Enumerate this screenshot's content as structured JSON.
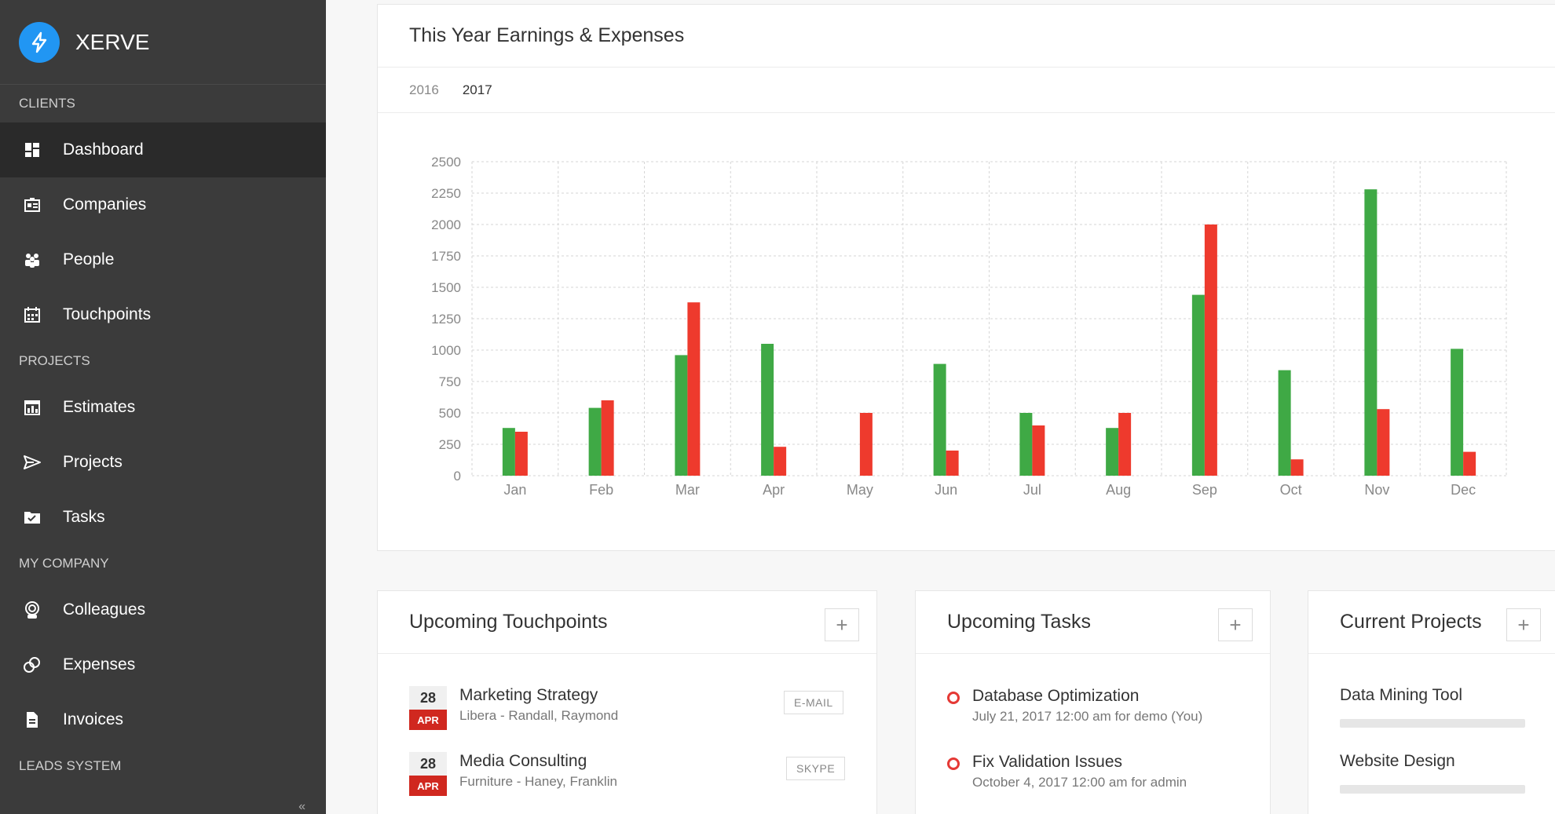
{
  "app": {
    "name": "XERVE"
  },
  "sidebar": {
    "sections": [
      {
        "title": "CLIENTS",
        "items": [
          {
            "label": "Dashboard",
            "icon": "dashboard-icon",
            "active": true
          },
          {
            "label": "Companies",
            "icon": "companies-icon"
          },
          {
            "label": "People",
            "icon": "people-icon"
          },
          {
            "label": "Touchpoints",
            "icon": "calendar-icon"
          }
        ]
      },
      {
        "title": "PROJECTS",
        "items": [
          {
            "label": "Estimates",
            "icon": "estimates-icon"
          },
          {
            "label": "Projects",
            "icon": "send-icon"
          },
          {
            "label": "Tasks",
            "icon": "folder-check-icon"
          }
        ]
      },
      {
        "title": "MY COMPANY",
        "items": [
          {
            "label": "Colleagues",
            "icon": "colleagues-icon"
          },
          {
            "label": "Expenses",
            "icon": "expenses-icon"
          },
          {
            "label": "Invoices",
            "icon": "invoice-icon"
          }
        ]
      },
      {
        "title": "LEADS SYSTEM",
        "items": []
      }
    ],
    "collapse_glyph": "«"
  },
  "earnings": {
    "title": "This Year Earnings & Expenses",
    "years": [
      "2016",
      "2017"
    ],
    "active_year": "2017"
  },
  "chart_data": {
    "type": "bar",
    "categories": [
      "Jan",
      "Feb",
      "Mar",
      "Apr",
      "May",
      "Jun",
      "Jul",
      "Aug",
      "Sep",
      "Oct",
      "Nov",
      "Dec"
    ],
    "series": [
      {
        "values": [
          380,
          540,
          960,
          1050,
          0,
          890,
          500,
          380,
          1440,
          840,
          2280,
          1010
        ],
        "color": "#3fa945"
      },
      {
        "values": [
          350,
          600,
          1380,
          230,
          500,
          200,
          400,
          500,
          2000,
          130,
          530,
          190
        ],
        "color": "#ee3a2d"
      }
    ],
    "yticks": [
      0,
      250,
      500,
      750,
      1000,
      1250,
      1500,
      1750,
      2000,
      2250,
      2500
    ],
    "ylim": [
      0,
      2500
    ],
    "grid": true
  },
  "touchpoints": {
    "title": "Upcoming Touchpoints",
    "add_label": "+",
    "items": [
      {
        "day": "28",
        "month": "APR",
        "title": "Marketing Strategy",
        "sub": "Libera - Randall, Raymond",
        "badge": "E-MAIL"
      },
      {
        "day": "28",
        "month": "APR",
        "title": "Media Consulting",
        "sub": "Furniture - Haney, Franklin",
        "badge": "SKYPE"
      }
    ]
  },
  "tasks": {
    "title": "Upcoming Tasks",
    "add_label": "+",
    "items": [
      {
        "title": "Database Optimization",
        "sub": "July 21, 2017 12:00 am for demo (You)"
      },
      {
        "title": "Fix Validation Issues",
        "sub": "October 4, 2017 12:00 am for admin"
      }
    ]
  },
  "projects": {
    "title": "Current Projects",
    "add_label": "+",
    "items": [
      {
        "name": "Data Mining Tool",
        "progress": 0
      },
      {
        "name": "Website Design",
        "progress": 0
      }
    ]
  }
}
